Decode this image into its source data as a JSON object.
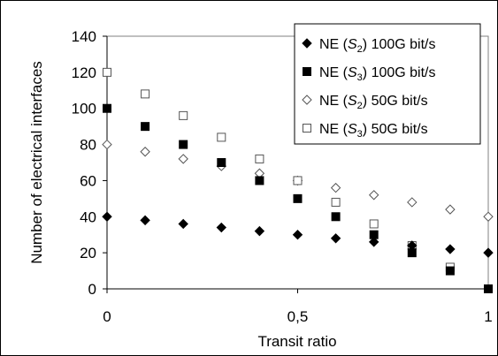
{
  "chart_data": {
    "type": "scatter",
    "title": "",
    "xlabel": "Transit ratio",
    "ylabel": "Number of electrical interfaces",
    "xlim": [
      0,
      1
    ],
    "ylim": [
      0,
      140
    ],
    "xticks": [
      {
        "value": 0,
        "label": "0"
      },
      {
        "value": 0.5,
        "label": "0,5"
      },
      {
        "value": 1,
        "label": "1"
      }
    ],
    "yticks": [
      0,
      20,
      40,
      60,
      80,
      100,
      120,
      140
    ],
    "grid": false,
    "legend_position": "top-right",
    "series": [
      {
        "name": "NE (S2)  100G bit/s",
        "label_prefix": "NE (",
        "label_sub_main": "S",
        "label_sub": "2",
        "label_suffix": ")  100G bit/s",
        "marker": "diamond-filled",
        "x": [
          0,
          0.1,
          0.2,
          0.3,
          0.4,
          0.5,
          0.6,
          0.7,
          0.8,
          0.9,
          1.0
        ],
        "y": [
          40,
          38,
          36,
          34,
          32,
          30,
          28,
          26,
          24,
          22,
          20
        ]
      },
      {
        "name": "NE (S3)  100G bit/s",
        "label_prefix": "NE (",
        "label_sub_main": "S",
        "label_sub": "3",
        "label_suffix": ")  100G bit/s",
        "marker": "square-filled",
        "x": [
          0,
          0.1,
          0.2,
          0.3,
          0.4,
          0.5,
          0.6,
          0.7,
          0.8,
          0.9,
          1.0
        ],
        "y": [
          100,
          90,
          80,
          70,
          60,
          50,
          40,
          30,
          20,
          10,
          0
        ]
      },
      {
        "name": "NE (S2)  50G bit/s",
        "label_prefix": "NE (",
        "label_sub_main": "S",
        "label_sub": "2",
        "label_suffix": ")  50G bit/s",
        "marker": "diamond-open",
        "x": [
          0,
          0.1,
          0.2,
          0.3,
          0.4,
          0.5,
          0.6,
          0.7,
          0.8,
          0.9,
          1.0
        ],
        "y": [
          80,
          76,
          72,
          68,
          64,
          60,
          56,
          52,
          48,
          44,
          40
        ]
      },
      {
        "name": "NE (S3)  50G bit/s",
        "label_prefix": "NE (",
        "label_sub_main": "S",
        "label_sub": "3",
        "label_suffix": ")  50G bit/s",
        "marker": "square-open",
        "x": [
          0,
          0.1,
          0.2,
          0.3,
          0.4,
          0.5,
          0.6,
          0.7,
          0.8,
          0.9,
          1.0
        ],
        "y": [
          120,
          108,
          96,
          84,
          72,
          60,
          48,
          36,
          24,
          12,
          0
        ]
      }
    ],
    "colors": {
      "marker": "#000000",
      "axis": "#000000",
      "frame": "#808080"
    }
  }
}
